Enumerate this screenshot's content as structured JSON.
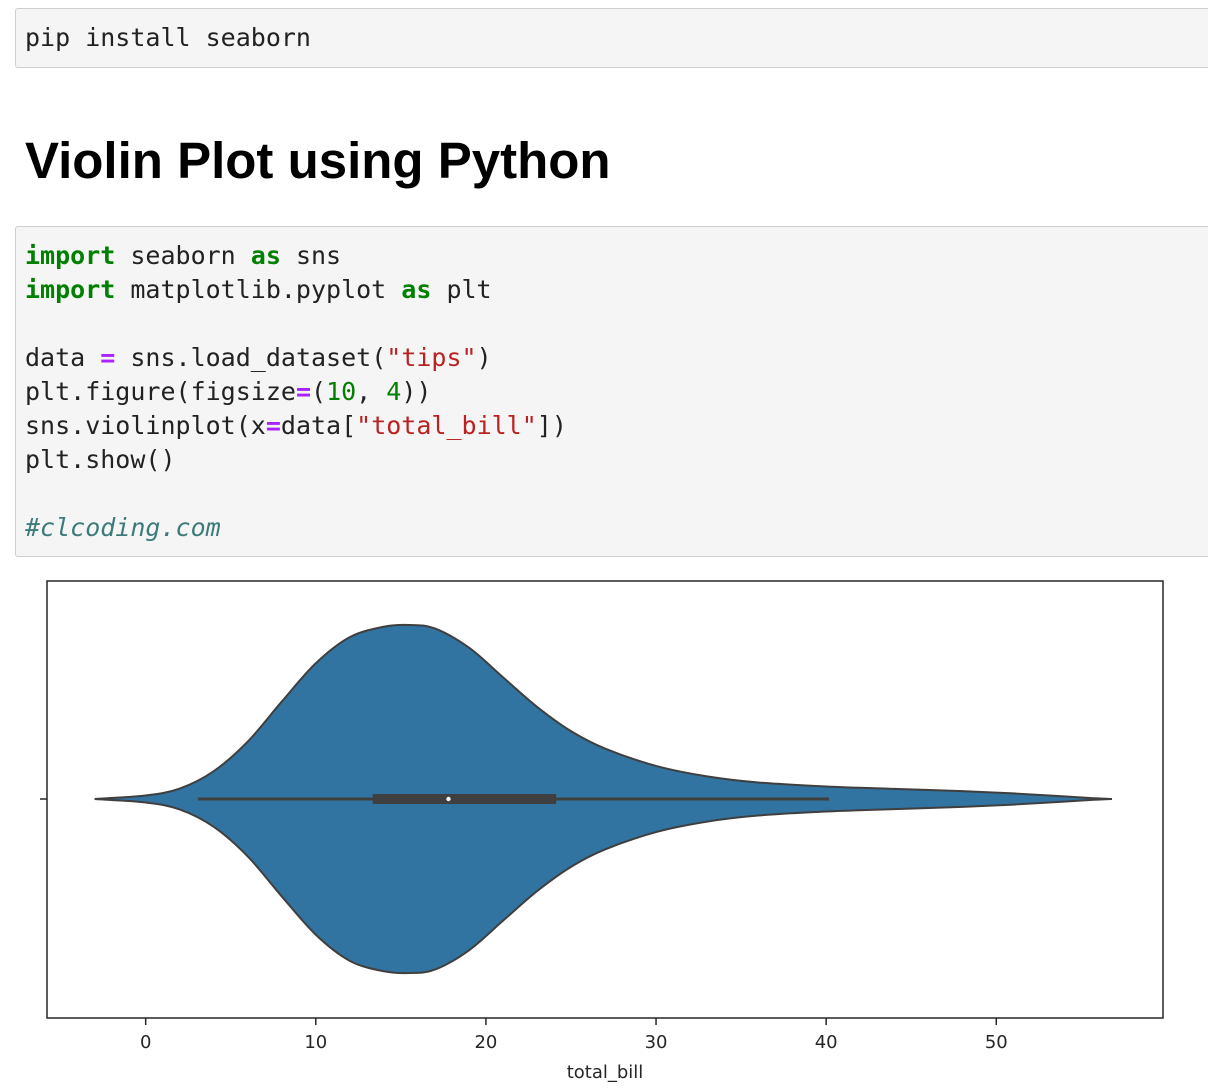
{
  "cells": {
    "install": {
      "code": "pip install seaborn"
    },
    "heading": "Violin Plot using Python",
    "code": {
      "tokens": {
        "import1": "import",
        "seaborn": " seaborn ",
        "as1": "as",
        "sns": " sns",
        "import2": "import",
        "matplotlib": " matplotlib.pyplot ",
        "as2": "as",
        "plt": " plt",
        "data_lhs": "data ",
        "eq1": "=",
        "load": " sns.load_dataset(",
        "tips": "\"tips\"",
        "load_end": ")",
        "fig_start": "plt.figure(figsize",
        "eq2": "=",
        "paren_open": "(",
        "num10": "10",
        "comma": ", ",
        "num4": "4",
        "fig_end": "))",
        "violin_start": "sns.violinplot(x",
        "eq3": "=",
        "violin_data": "data[",
        "total_bill_str": "\"total_bill\"",
        "violin_end": "])",
        "show": "plt.show()",
        "comment": "#clcoding.com"
      }
    }
  },
  "chart_data": {
    "type": "violin",
    "orientation": "horizontal",
    "xlabel": "total_bill",
    "xlim": [
      -5.8,
      59.8
    ],
    "xticks": [
      0,
      10,
      20,
      30,
      40,
      50
    ],
    "fill_color": "#3274a1",
    "edge_color": "#3f3f3f",
    "density_profile": [
      {
        "x": -3.0,
        "w": 0.0
      },
      {
        "x": 0.0,
        "w": 0.02
      },
      {
        "x": 2.0,
        "w": 0.06
      },
      {
        "x": 4.0,
        "w": 0.16
      },
      {
        "x": 6.0,
        "w": 0.33
      },
      {
        "x": 8.0,
        "w": 0.56
      },
      {
        "x": 10.0,
        "w": 0.78
      },
      {
        "x": 12.0,
        "w": 0.93
      },
      {
        "x": 14.0,
        "w": 0.99
      },
      {
        "x": 15.5,
        "w": 1.0
      },
      {
        "x": 17.0,
        "w": 0.98
      },
      {
        "x": 19.0,
        "w": 0.87
      },
      {
        "x": 21.0,
        "w": 0.7
      },
      {
        "x": 23.0,
        "w": 0.53
      },
      {
        "x": 25.0,
        "w": 0.39
      },
      {
        "x": 27.0,
        "w": 0.29
      },
      {
        "x": 30.0,
        "w": 0.19
      },
      {
        "x": 33.0,
        "w": 0.13
      },
      {
        "x": 36.0,
        "w": 0.095
      },
      {
        "x": 40.0,
        "w": 0.072
      },
      {
        "x": 44.0,
        "w": 0.058
      },
      {
        "x": 48.0,
        "w": 0.045
      },
      {
        "x": 51.0,
        "w": 0.032
      },
      {
        "x": 53.5,
        "w": 0.018
      },
      {
        "x": 55.5,
        "w": 0.006
      },
      {
        "x": 56.8,
        "w": 0.0
      }
    ],
    "box": {
      "whisker_low": 3.07,
      "q1": 13.35,
      "median": 17.8,
      "q3": 24.13,
      "whisker_high": 40.17
    }
  }
}
